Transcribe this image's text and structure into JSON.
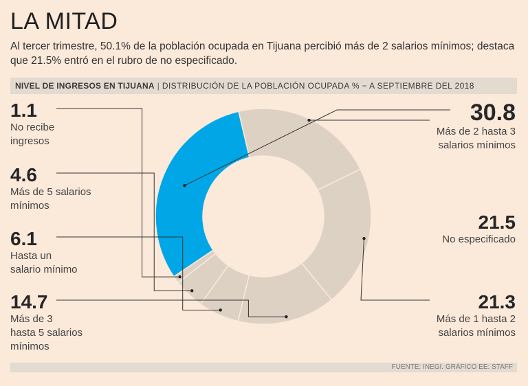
{
  "header": {
    "title": "LA MITAD",
    "subtitle": "Al tercer trimestre, 50.1% de la población ocupada en Tijuana percibió más de 2 salarios mínimos; destaca que 21.5% entró en el rubro de no especificado.",
    "banner_strong": "NIVEL DE INGRESOS EN TIJUANA",
    "banner_sep": "|",
    "banner_rest": "DISTRIBUCIÓN DE LA POBLACIÓN OCUPADA % − A SEPTIEMBRE DEL 2018"
  },
  "footer": {
    "source": "FUENTE: INEGI. GRÁFICO EE: STAFF"
  },
  "colors": {
    "highlight": "#00a6e6",
    "slice": "#ddd1c4",
    "bg": "#fbe9da"
  },
  "chart_data": {
    "type": "pie",
    "variant": "donut",
    "title": "NIVEL DE INGRESOS EN TIJUANA",
    "unit": "%",
    "slices": [
      {
        "label": "Más de 2 hasta 3 salarios mínimos",
        "display": "30.8",
        "value": 30.8,
        "highlight": true
      },
      {
        "label": "No especificado",
        "display": "21.5",
        "value": 21.5
      },
      {
        "label": "Más de 1 hasta 2 salarios mínimos",
        "display": "21.3",
        "value": 21.3
      },
      {
        "label": "Más de 3 hasta 5 salarios mínimos",
        "display": "14.7",
        "value": 14.7
      },
      {
        "label": "Hasta un salario mínimo",
        "display": "6.1",
        "value": 6.1
      },
      {
        "label": "Más de 5 salarios mínimos",
        "display": "4.6",
        "value": 4.6
      },
      {
        "label": "No recibe ingresos",
        "display": "1.1",
        "value": 1.1
      }
    ]
  },
  "labels": {
    "s0": {
      "value": "30.8",
      "desc": [
        "Más de 2 hasta 3",
        "salarios mínimos"
      ]
    },
    "s1": {
      "value": "21.5",
      "desc": [
        "No especificado"
      ]
    },
    "s2": {
      "value": "21.3",
      "desc": [
        "Más de 1 hasta 2",
        "salarios mínimos"
      ]
    },
    "s3": {
      "value": "14.7",
      "desc": [
        "Más de 3",
        "hasta 5 salarios",
        "mínimos"
      ]
    },
    "s4": {
      "value": "6.1",
      "desc": [
        "Hasta un",
        "salario mínimo"
      ]
    },
    "s5": {
      "value": "4.6",
      "desc": [
        "Más de 5 salarios",
        "mínimos"
      ]
    },
    "s6": {
      "value": "1.1",
      "desc": [
        "No recibe",
        "ingresos"
      ]
    }
  }
}
